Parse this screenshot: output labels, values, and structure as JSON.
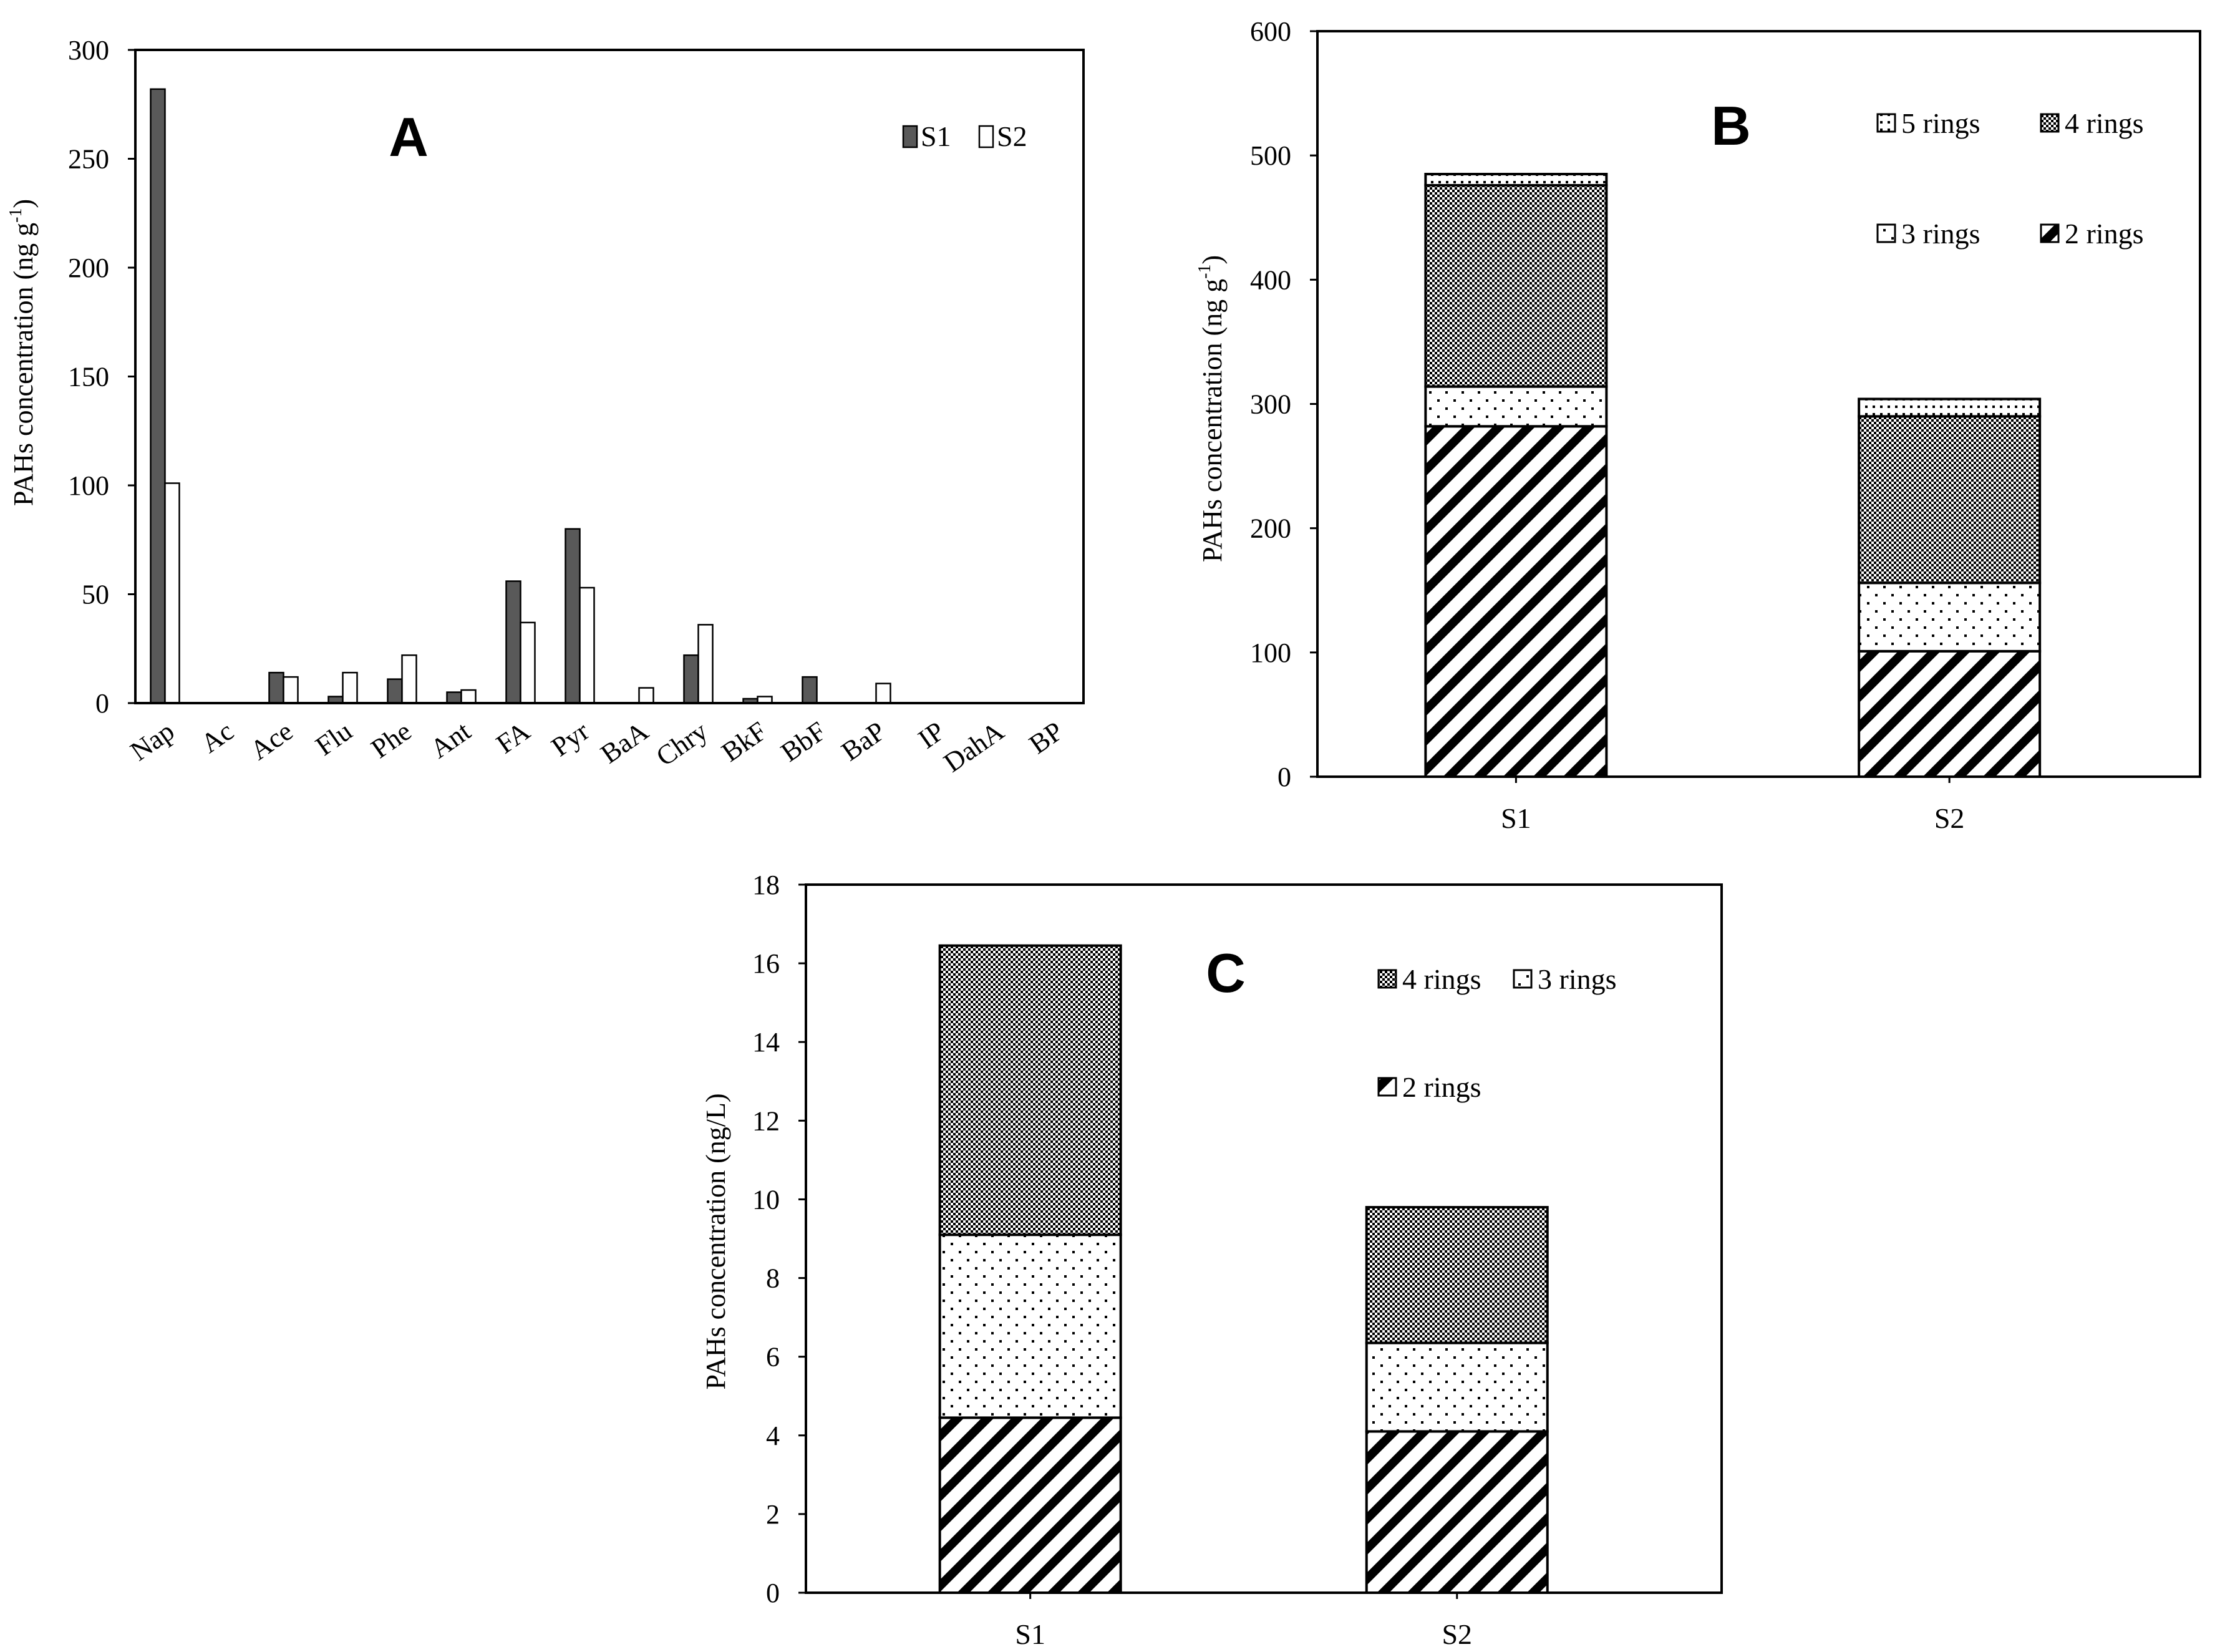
{
  "chart_data": [
    {
      "id": "A",
      "type": "bar",
      "panel_label": "A",
      "ylabel": "PAHs  concentration (ng g-1)",
      "ylabel_main": "PAHs  concentration (ng g",
      "ylabel_sup": "-1",
      "ylabel_end": ")",
      "ylim": [
        0,
        300
      ],
      "yticks": [
        0,
        50,
        100,
        150,
        200,
        250,
        300
      ],
      "categories": [
        "Nap",
        "Ac",
        "Ace",
        "Flu",
        "Phe",
        "Ant",
        "FA",
        "Pyr",
        "BaA",
        "Chry",
        "BkF",
        "BbF",
        "BaP",
        "IP",
        "DahA",
        "BP"
      ],
      "series": [
        {
          "name": "S1",
          "color": "#595959",
          "values": [
            282,
            0,
            14,
            3,
            11,
            5,
            56,
            80,
            0,
            22,
            2,
            12,
            0,
            0,
            0,
            0
          ]
        },
        {
          "name": "S2",
          "color": "#ffffff",
          "values": [
            101,
            0,
            12,
            14,
            22,
            6,
            37,
            53,
            7,
            36,
            3,
            0,
            9,
            0,
            0,
            0
          ]
        }
      ],
      "legend": {
        "position": "top-right"
      }
    },
    {
      "id": "B",
      "type": "bar",
      "stacked": true,
      "panel_label": "B",
      "ylabel": "PAHs  concentration (ng g-1)",
      "ylabel_main": "PAHs  concentration (ng g",
      "ylabel_sup": "-1",
      "ylabel_end": ")",
      "ylim": [
        0,
        600
      ],
      "yticks": [
        0,
        100,
        200,
        300,
        400,
        500,
        600
      ],
      "categories": [
        "S1",
        "S2"
      ],
      "series": [
        {
          "name": "2 rings",
          "pattern": "diagonal",
          "values": [
            282,
            101
          ]
        },
        {
          "name": "3 rings",
          "pattern": "dots",
          "values": [
            32,
            55
          ]
        },
        {
          "name": "4 rings",
          "pattern": "checker",
          "values": [
            162,
            134
          ]
        },
        {
          "name": "5 rings",
          "pattern": "dense-dots",
          "values": [
            9,
            14
          ]
        }
      ],
      "legend_order": [
        "5 rings",
        "4 rings",
        "3 rings",
        "2 rings"
      ],
      "legend": {
        "position": "top-right"
      }
    },
    {
      "id": "C",
      "type": "bar",
      "stacked": true,
      "panel_label": "C",
      "ylabel": "PAHs concentration (ng/L)",
      "ylim": [
        0,
        18
      ],
      "yticks": [
        0,
        2,
        4,
        6,
        8,
        10,
        12,
        14,
        16,
        18
      ],
      "categories": [
        "S1",
        "S2"
      ],
      "series": [
        {
          "name": "2 rings",
          "pattern": "diagonal",
          "values": [
            4.45,
            4.1
          ]
        },
        {
          "name": "3 rings",
          "pattern": "dots",
          "values": [
            4.65,
            2.25
          ]
        },
        {
          "name": "4 rings",
          "pattern": "checker",
          "values": [
            7.35,
            3.45
          ]
        }
      ],
      "legend_order": [
        "4 rings",
        "3 rings",
        "2 rings"
      ],
      "legend": {
        "position": "top-right"
      }
    }
  ]
}
